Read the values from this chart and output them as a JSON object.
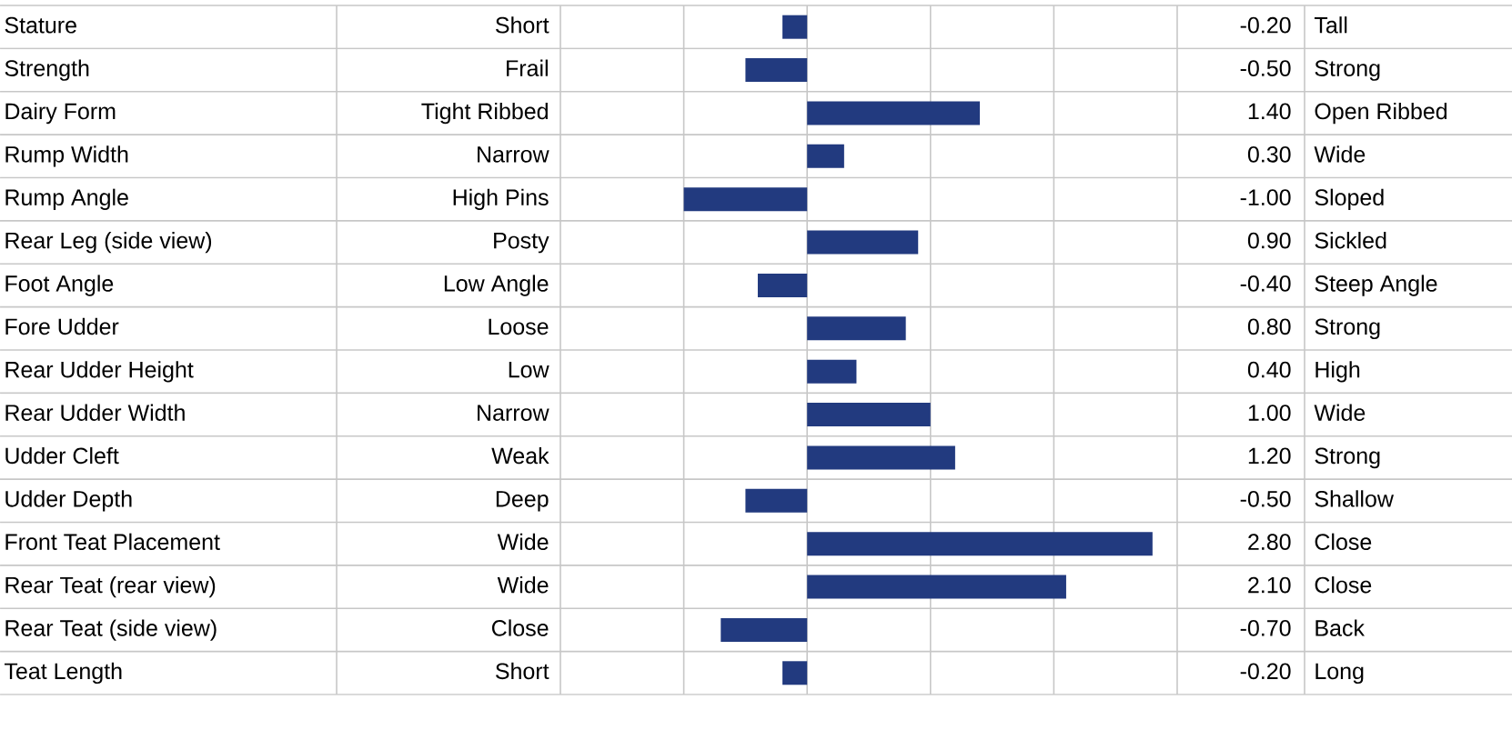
{
  "chart_data": {
    "type": "bar",
    "orientation": "horizontal",
    "categories": [
      "Stature",
      "Strength",
      "Dairy Form",
      "Rump Width",
      "Rump Angle",
      "Rear Leg (side view)",
      "Foot Angle",
      "Fore Udder",
      "Rear Udder Height",
      "Rear Udder Width",
      "Udder Cleft",
      "Udder Depth",
      "Front Teat Placement",
      "Rear Teat (rear view)",
      "Rear Teat (side view)",
      "Teat Length"
    ],
    "values": [
      -0.2,
      -0.5,
      1.4,
      0.3,
      -1.0,
      0.9,
      -0.4,
      0.8,
      0.4,
      1.0,
      1.2,
      -0.5,
      2.8,
      2.1,
      -0.7,
      -0.2
    ],
    "value_labels": [
      "-0.20",
      "-0.50",
      "1.40",
      "0.30",
      "-1.00",
      "0.90",
      "-0.40",
      "0.80",
      "0.40",
      "1.00",
      "1.20",
      "-0.50",
      "2.80",
      "2.10",
      "-0.70",
      "-0.20"
    ],
    "color": "#223a7f",
    "xlim": [
      -2,
      3
    ],
    "xticks": [
      {
        "value": -2,
        "label": null
      },
      {
        "value": -1,
        "label": null
      },
      {
        "value": 0,
        "label": null
      },
      {
        "value": 1,
        "label": null
      },
      {
        "value": 2,
        "label": null
      },
      {
        "value": 3,
        "label": null
      }
    ],
    "grid": "x",
    "tick_labels": "y",
    "annotations": [
      "Short",
      "Frail",
      "Tight Ribbed",
      "Narrow",
      "High Pins",
      "Posty",
      "Low Angle",
      "Loose",
      "Low",
      "Narrow",
      "Weak",
      "Deep",
      "Wide",
      "Wide",
      "Close",
      "Short",
      "Tall",
      "Strong",
      "Open Ribbed",
      "Wide",
      "Sloped",
      "Sickled",
      "Steep Angle",
      "Strong",
      "High",
      "Wide",
      "Strong",
      "Shallow",
      "Close",
      "Close",
      "Back",
      "Long"
    ]
  }
}
